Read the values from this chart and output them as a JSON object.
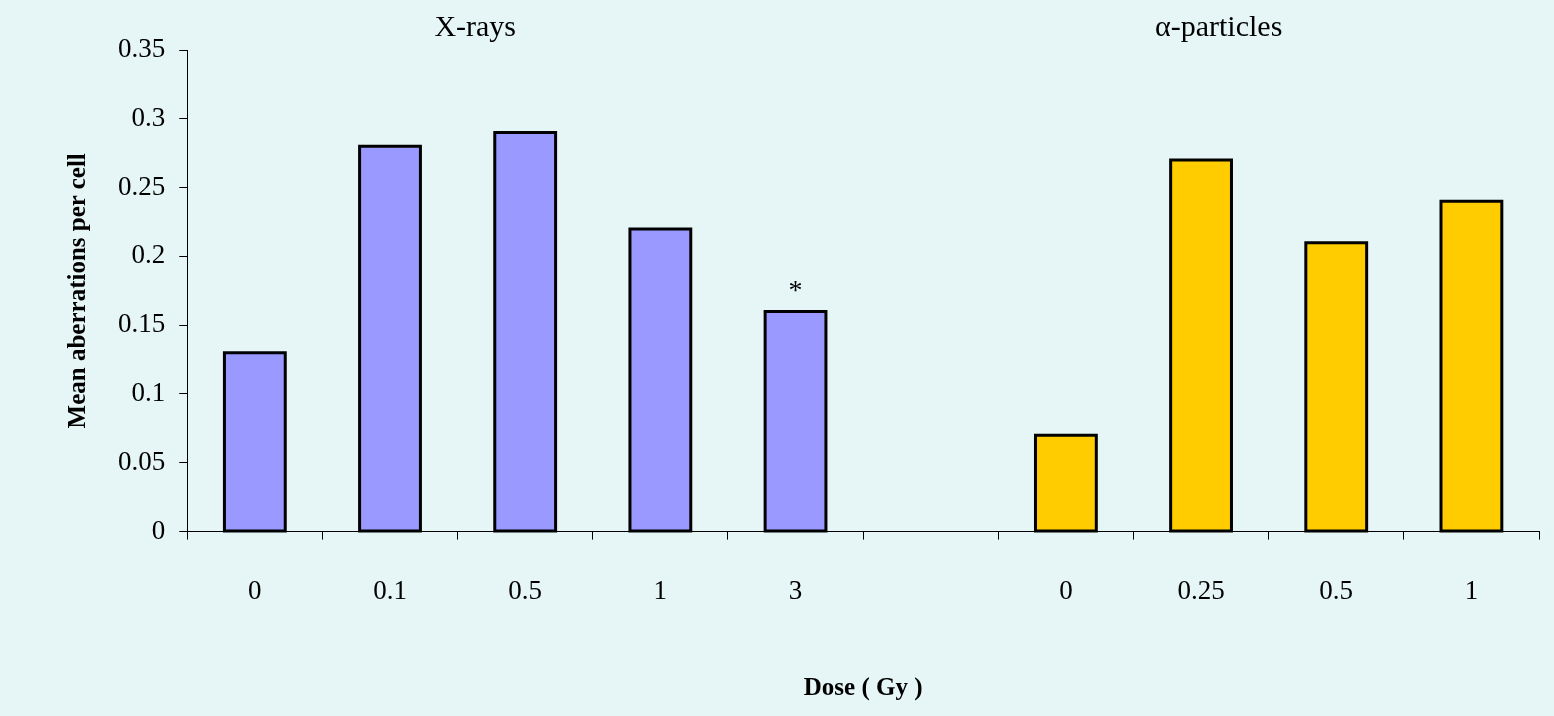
{
  "chart_data": {
    "type": "bar",
    "xlabel": "Dose ( Gy )",
    "ylabel": "Mean aberrations per cell",
    "categories": [
      "0",
      "0.1",
      "0.5",
      "1",
      "3",
      null,
      "0",
      "0.25",
      "0.5",
      "1"
    ],
    "values": [
      0.13,
      0.28,
      0.29,
      0.22,
      0.16,
      null,
      0.07,
      0.27,
      0.21,
      0.24
    ],
    "colors": [
      "#9999ff",
      "#9999ff",
      "#9999ff",
      "#9999ff",
      "#9999ff",
      "#9999ff",
      "#ffcc00",
      "#ffcc00",
      "#ffcc00",
      "#ffcc00"
    ],
    "ylim": [
      0,
      0.35
    ],
    "yticks": [
      0,
      0.05,
      0.1,
      0.15,
      0.2,
      0.25,
      0.3,
      0.35
    ],
    "grid": false,
    "legend": false,
    "annotations": [
      "X-rays",
      "α-particles",
      {
        "text": "*",
        "x": "3",
        "y": 0.16
      }
    ]
  }
}
